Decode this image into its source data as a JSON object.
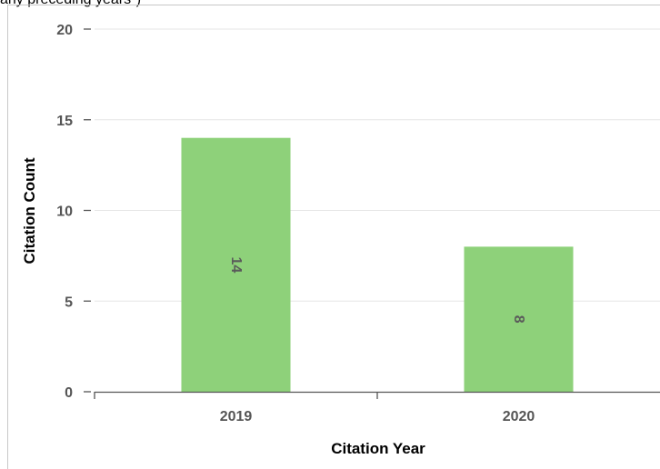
{
  "top_note": "any preceding years\")",
  "chart_data": {
    "type": "bar",
    "categories": [
      "2019",
      "2020"
    ],
    "values": [
      14,
      8
    ],
    "xlabel": "Citation Year",
    "ylabel": "Citation Count",
    "ylim": [
      0,
      20
    ],
    "yticks": [
      0,
      5,
      10,
      15,
      20
    ],
    "grid": true,
    "data_labels": true,
    "bar_color": "#8ed17a",
    "gridline_color": "#e6e6e6",
    "axis_color": "#555555"
  }
}
